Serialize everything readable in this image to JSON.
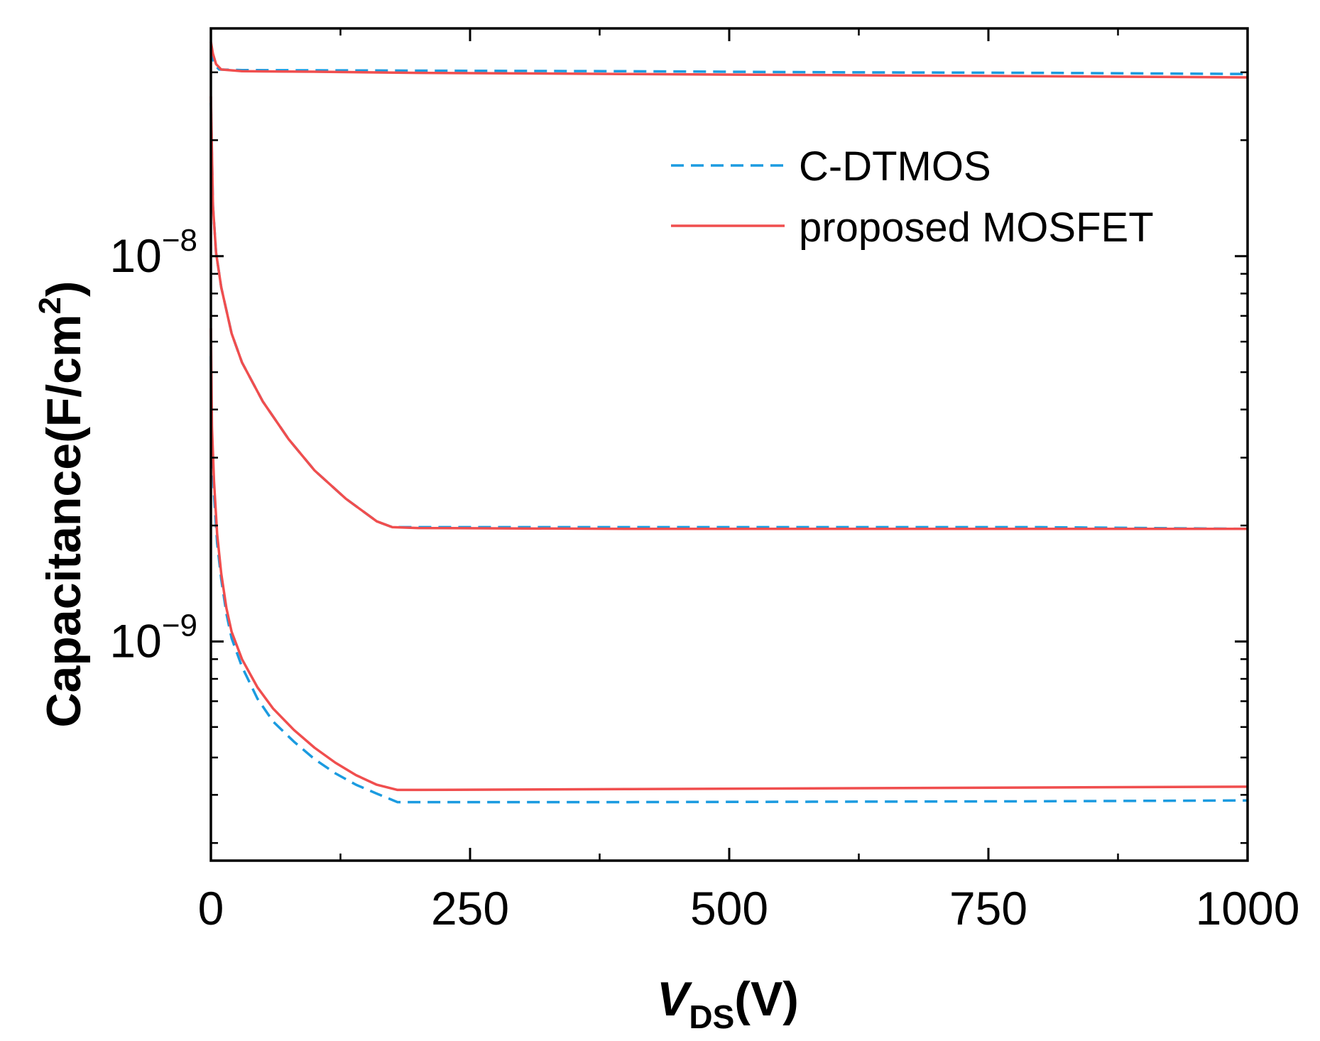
{
  "chart_data": {
    "type": "line",
    "title": "",
    "xlabel": {
      "main": "V",
      "sub": "DS",
      "rest": "(V)"
    },
    "ylabel": {
      "main": "Capacitance(F/cm",
      "sup": "2",
      "rest": ")"
    },
    "xscale": "linear",
    "yscale": "log",
    "xlim": [
      0,
      1000
    ],
    "ylim": [
      2.7e-10,
      3.9e-08
    ],
    "x_ticks": [
      0,
      250,
      500,
      750,
      1000
    ],
    "x_tick_labels": [
      "0",
      "250",
      "500",
      "750",
      "1000"
    ],
    "y_major_ticks": [
      {
        "value": 1e-08,
        "base": "10",
        "exp": "−8"
      },
      {
        "value": 1e-09,
        "base": "10",
        "exp": "−9"
      }
    ],
    "legend": {
      "position": "upper-right",
      "entries": [
        {
          "label": "C-DTMOS",
          "color": "#1b9be0",
          "style": "dashed"
        },
        {
          "label": "proposed MOSFET",
          "color": "#f04e4e",
          "style": "solid"
        }
      ]
    },
    "series": [
      {
        "name": "C-DTMOS",
        "curve": "upper",
        "color": "#1b9be0",
        "style": "dashed",
        "x": [
          0,
          3,
          8,
          30,
          200,
          400,
          600,
          800,
          1000
        ],
        "y": [
          3.45e-08,
          3.15e-08,
          3.05e-08,
          3.04e-08,
          3.03e-08,
          3.02e-08,
          3e-08,
          2.99e-08,
          2.97e-08
        ]
      },
      {
        "name": "C-DTMOS",
        "curve": "middle",
        "color": "#1b9be0",
        "style": "dashed",
        "x": [
          0,
          2,
          5,
          10,
          20,
          30,
          50,
          75,
          100,
          130,
          160,
          175,
          200,
          400,
          600,
          800,
          1000
        ],
        "y": [
          2.5e-08,
          1.35e-08,
          1.02e-08,
          8.3e-09,
          6.3e-09,
          5.3e-09,
          4.2e-09,
          3.35e-09,
          2.78e-09,
          2.35e-09,
          2.05e-09,
          1.98e-09,
          1.98e-09,
          1.98e-09,
          1.98e-09,
          1.98e-09,
          1.96e-09
        ]
      },
      {
        "name": "C-DTMOS",
        "curve": "lower",
        "color": "#1b9be0",
        "style": "dashed",
        "x": [
          0,
          1,
          3,
          6,
          10,
          15,
          20,
          30,
          45,
          60,
          80,
          100,
          120,
          140,
          160,
          180,
          200,
          400,
          600,
          800,
          1000
        ],
        "y": [
          5.5e-09,
          3.3e-09,
          2.4e-09,
          1.8e-09,
          1.45e-09,
          1.18e-09,
          1.02e-09,
          8.6e-10,
          7.1e-10,
          6.2e-10,
          5.5e-10,
          4.95e-10,
          4.55e-10,
          4.25e-10,
          4.03e-10,
          3.83e-10,
          3.83e-10,
          3.83e-10,
          3.84e-10,
          3.85e-10,
          3.87e-10
        ]
      },
      {
        "name": "proposed MOSFET",
        "curve": "upper",
        "color": "#f04e4e",
        "style": "solid",
        "x": [
          0,
          2,
          5,
          10,
          30,
          100,
          200,
          400,
          600,
          800,
          1000
        ],
        "y": [
          3.6e-08,
          3.35e-08,
          3.15e-08,
          3.05e-08,
          3.02e-08,
          3.01e-08,
          2.99e-08,
          2.97e-08,
          2.95e-08,
          2.93e-08,
          2.91e-08
        ]
      },
      {
        "name": "proposed MOSFET",
        "curve": "middle",
        "color": "#f04e4e",
        "style": "solid",
        "x": [
          0,
          2,
          5,
          10,
          20,
          30,
          50,
          75,
          100,
          130,
          160,
          175,
          200,
          400,
          600,
          800,
          1000
        ],
        "y": [
          2.6e-08,
          1.35e-08,
          1.02e-08,
          8.3e-09,
          6.3e-09,
          5.3e-09,
          4.2e-09,
          3.35e-09,
          2.78e-09,
          2.35e-09,
          2.05e-09,
          1.98e-09,
          1.97e-09,
          1.96e-09,
          1.96e-09,
          1.96e-09,
          1.96e-09
        ]
      },
      {
        "name": "proposed MOSFET",
        "curve": "lower",
        "color": "#f04e4e",
        "style": "solid",
        "x": [
          0,
          1,
          3,
          6,
          10,
          15,
          20,
          30,
          45,
          60,
          80,
          100,
          120,
          140,
          160,
          180,
          200,
          400,
          600,
          800,
          1000
        ],
        "y": [
          6.5e-09,
          3.6e-09,
          2.6e-09,
          1.9e-09,
          1.5e-09,
          1.22e-09,
          1.06e-09,
          9e-10,
          7.6e-10,
          6.7e-10,
          5.9e-10,
          5.3e-10,
          4.85e-10,
          4.5e-10,
          4.25e-10,
          4.12e-10,
          4.12e-10,
          4.14e-10,
          4.16e-10,
          4.18e-10,
          4.2e-10
        ]
      }
    ]
  }
}
